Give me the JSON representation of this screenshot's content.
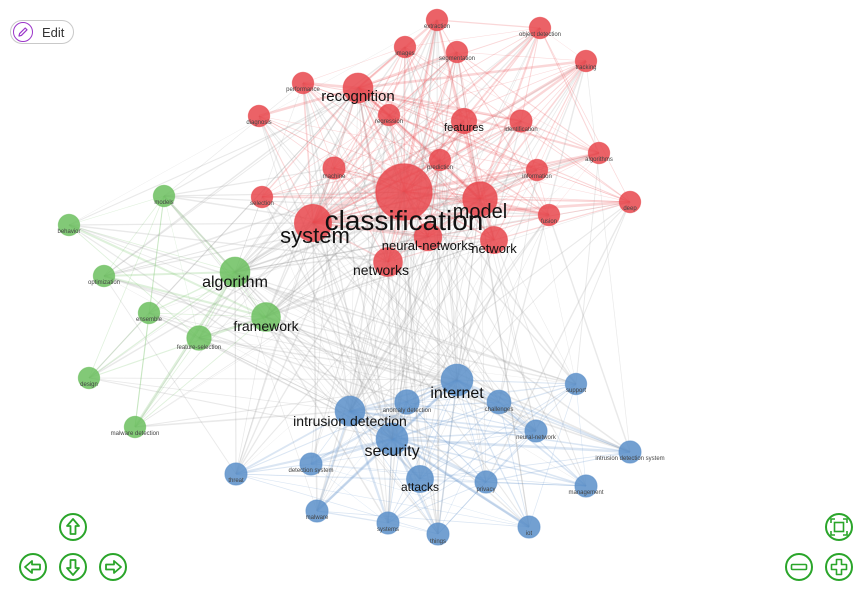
{
  "toolbar": {
    "edit_label": "Edit",
    "edit_icon": "pencil-icon"
  },
  "colors": {
    "red": "#e8474c",
    "green": "#6cbf5f",
    "blue": "#5b8fc9",
    "nav": "#2aa52a",
    "edit_accent": "#9b35c9"
  },
  "navigation": {
    "buttons": [
      "arrow-up",
      "arrow-left",
      "arrow-down",
      "arrow-right",
      "fit",
      "zoom-out",
      "zoom-in"
    ]
  },
  "network": {
    "nodes": [
      {
        "id": "classification",
        "label": "classification",
        "cluster": "red",
        "weight": 100
      },
      {
        "id": "system",
        "label": "system",
        "cluster": "red",
        "weight": 38
      },
      {
        "id": "model",
        "label": "model",
        "cluster": "red",
        "weight": 32
      },
      {
        "id": "recognition",
        "label": "recognition",
        "cluster": "red",
        "weight": 22
      },
      {
        "id": "networks",
        "label": "networks",
        "cluster": "red",
        "weight": 20
      },
      {
        "id": "neural-networks",
        "label": "neural-networks",
        "cluster": "red",
        "weight": 18
      },
      {
        "id": "network",
        "label": "network",
        "cluster": "red",
        "weight": 17
      },
      {
        "id": "features",
        "label": "features",
        "cluster": "red",
        "weight": 14
      },
      {
        "id": "extraction",
        "label": "extraction",
        "cluster": "red",
        "weight": 9
      },
      {
        "id": "object detection",
        "label": "object detection",
        "cluster": "red",
        "weight": 9
      },
      {
        "id": "images",
        "label": "images",
        "cluster": "red",
        "weight": 9
      },
      {
        "id": "segmentation",
        "label": "segmentation",
        "cluster": "red",
        "weight": 9
      },
      {
        "id": "tracking",
        "label": "tracking",
        "cluster": "red",
        "weight": 9
      },
      {
        "id": "performance",
        "label": "performance",
        "cluster": "red",
        "weight": 9
      },
      {
        "id": "diagnosis",
        "label": "diagnosis",
        "cluster": "red",
        "weight": 9
      },
      {
        "id": "regression",
        "label": "regression",
        "cluster": "red",
        "weight": 9
      },
      {
        "id": "identification",
        "label": "identification",
        "cluster": "red",
        "weight": 10
      },
      {
        "id": "algorithms",
        "label": "algorithms",
        "cluster": "red",
        "weight": 9
      },
      {
        "id": "prediction",
        "label": "prediction",
        "cluster": "red",
        "weight": 9
      },
      {
        "id": "machine",
        "label": "machine",
        "cluster": "red",
        "weight": 10
      },
      {
        "id": "information",
        "label": "information",
        "cluster": "red",
        "weight": 9
      },
      {
        "id": "selection",
        "label": "selection",
        "cluster": "red",
        "weight": 9
      },
      {
        "id": "deep",
        "label": "deep",
        "cluster": "red",
        "weight": 9
      },
      {
        "id": "fusion",
        "label": "fusion",
        "cluster": "red",
        "weight": 9
      },
      {
        "id": "algorithm",
        "label": "algorithm",
        "cluster": "green",
        "weight": 22
      },
      {
        "id": "framework",
        "label": "framework",
        "cluster": "green",
        "weight": 20
      },
      {
        "id": "feature-selection",
        "label": "feature-selection",
        "cluster": "green",
        "weight": 13
      },
      {
        "id": "models",
        "label": "models",
        "cluster": "green",
        "weight": 9
      },
      {
        "id": "behavior",
        "label": "behavior",
        "cluster": "green",
        "weight": 9
      },
      {
        "id": "optimization",
        "label": "optimization",
        "cluster": "green",
        "weight": 9
      },
      {
        "id": "ensemble",
        "label": "ensemble",
        "cluster": "green",
        "weight": 9
      },
      {
        "id": "design",
        "label": "design",
        "cluster": "green",
        "weight": 9
      },
      {
        "id": "malware detection",
        "label": "malware detection",
        "cluster": "green",
        "weight": 9
      },
      {
        "id": "internet",
        "label": "internet",
        "cluster": "blue",
        "weight": 26
      },
      {
        "id": "intrusion detection",
        "label": "intrusion detection",
        "cluster": "blue",
        "weight": 22
      },
      {
        "id": "security",
        "label": "security",
        "cluster": "blue",
        "weight": 26
      },
      {
        "id": "attacks",
        "label": "attacks",
        "cluster": "blue",
        "weight": 17
      },
      {
        "id": "anomaly detection",
        "label": "anomaly detection",
        "cluster": "blue",
        "weight": 13
      },
      {
        "id": "challenges",
        "label": "challenges",
        "cluster": "blue",
        "weight": 12
      },
      {
        "id": "support",
        "label": "support",
        "cluster": "blue",
        "weight": 9
      },
      {
        "id": "neural-network",
        "label": "neural-network",
        "cluster": "blue",
        "weight": 10
      },
      {
        "id": "intrusion detection system",
        "label": "intrusion detection system",
        "cluster": "blue",
        "weight": 10
      },
      {
        "id": "threat",
        "label": "threat",
        "cluster": "blue",
        "weight": 10
      },
      {
        "id": "detection system",
        "label": "detection system",
        "cluster": "blue",
        "weight": 10
      },
      {
        "id": "privacy",
        "label": "privacy",
        "cluster": "blue",
        "weight": 10
      },
      {
        "id": "management",
        "label": "management",
        "cluster": "blue",
        "weight": 10
      },
      {
        "id": "malware",
        "label": "malware",
        "cluster": "blue",
        "weight": 10
      },
      {
        "id": "systems",
        "label": "systems",
        "cluster": "blue",
        "weight": 10
      },
      {
        "id": "things",
        "label": "things",
        "cluster": "blue",
        "weight": 10
      },
      {
        "id": "iot",
        "label": "iot",
        "cluster": "blue",
        "weight": 10
      }
    ]
  }
}
